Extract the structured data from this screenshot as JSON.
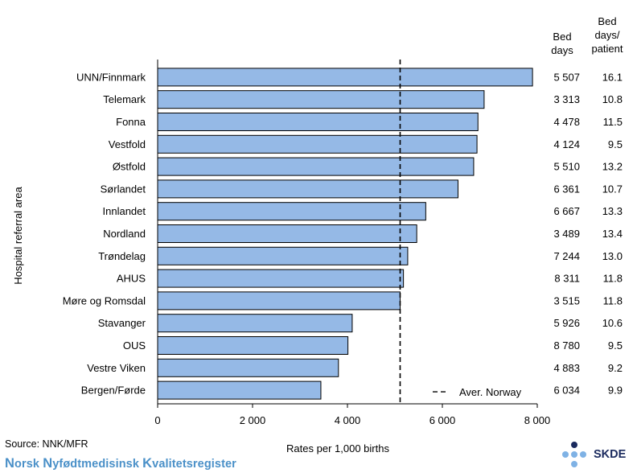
{
  "chart_data": {
    "type": "bar",
    "orientation": "horizontal",
    "categories": [
      "UNN/Finnmark",
      "Telemark",
      "Fonna",
      "Vestfold",
      "Østfold",
      "Sørlandet",
      "Innlandet",
      "Nordland",
      "Trøndelag",
      "AHUS",
      "Møre og Romsdal",
      "Stavanger",
      "OUS",
      "Vestre Viken",
      "Bergen/Førde"
    ],
    "values": [
      7900,
      6880,
      6750,
      6730,
      6660,
      6330,
      5650,
      5460,
      5270,
      5180,
      5110,
      4100,
      4010,
      3810,
      3440
    ],
    "xlabel": "Rates per 1,000 births",
    "ylabel": "Hospital referral area",
    "xlim": [
      0,
      8000
    ],
    "xticks": [
      "0",
      "2 000",
      "4 000",
      "6 000",
      "8 000"
    ],
    "grid": false,
    "bar_color": "#95b9e6",
    "reference_line": {
      "label": "Aver. Norway",
      "value": 5110
    },
    "table": {
      "headers": [
        "Bed days",
        "Bed days/ patient"
      ],
      "bed_days": [
        "5 507",
        "3 313",
        "4 478",
        "4 124",
        "5 510",
        "6 361",
        "6 667",
        "3 489",
        "7 244",
        "8 311",
        "3 515",
        "5 926",
        "8 780",
        "4 883",
        "6 034"
      ],
      "bed_days_per_patient": [
        "16.1",
        "10.8",
        "11.5",
        "9.5",
        "13.2",
        "10.7",
        "13.3",
        "13.4",
        "13.0",
        "11.8",
        "11.8",
        "10.6",
        "9.5",
        "9.2",
        "9.9"
      ]
    }
  },
  "header": {
    "bed_days_line1": "Bed",
    "bed_days_line2": "days",
    "per_patient_line1": "Bed",
    "per_patient_line2": "days/",
    "per_patient_line3": "patient"
  },
  "footer": {
    "source": "Source: NNK/MFR",
    "brand_parts": [
      "N",
      "orsk ",
      "N",
      "yfødtmedisinsk ",
      "K",
      "valitetsregister"
    ],
    "logo_text": "SKDE",
    "brand_color": "#4a90c8",
    "logo_color": "#1a2a5e"
  }
}
